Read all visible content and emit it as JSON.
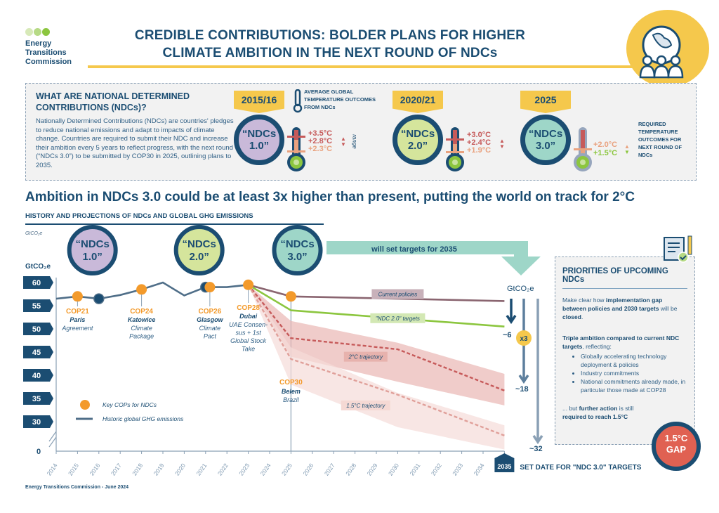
{
  "header": {
    "logo_text": [
      "Energy",
      "Transitions",
      "Commission"
    ],
    "title_lines": [
      "CREDIBLE CONTRIBUTIONS: BOLDER PLANS FOR HIGHER",
      "CLIMATE AMBITION IN THE NEXT ROUND OF NDCs"
    ],
    "badge_icon": "globe-people-icon"
  },
  "intro": {
    "heading": "WHAT ARE NATIONAL DETERMINED CONTRIBUTIONS (NDCs)?",
    "body": "Nationally Determined Contributions (NDCs) are countries' pledges to reduce national emissions and adapt to impacts of climate change. Countries are required to submit their NDC and increase their ambition every 5 years to reflect progress, with the next round (“NDCs 3.0”) to be submitted by COP30 in 2025, outlining plans to 2035.",
    "legend_label": "AVERAGE GLOBAL TEMPERATURE OUTCOMES FROM NDCs",
    "range_label": "range",
    "required_label": "REQUIRED TEMPERATURE OUTCOMES FOR NEXT ROUND OF NDCs",
    "rounds": [
      {
        "year": "2015/16",
        "name": "“NDCs 1.0”",
        "color": "#c9b9d9",
        "temps": [
          "+3.5°C",
          "+2.8°C",
          "+2.3°C"
        ]
      },
      {
        "year": "2020/21",
        "name": "“NDCs 2.0”",
        "color": "#d5e59c",
        "temps": [
          "+3.0°C",
          "+2.4°C",
          "+1.9°C"
        ]
      },
      {
        "year": "2025",
        "name": "“NDCs 3.0”",
        "color": "#9ed6c8",
        "temps": [
          "+2.0°C",
          "+1.5°C"
        ]
      }
    ]
  },
  "headline": "Ambition in NDCs 3.0 could be at least 3x higher than present, putting the world on track for 2°C",
  "subhead": "HISTORY AND PROJECTIONS OF NDCs AND GLOBAL GHG EMISSIONS",
  "chart_data": {
    "type": "line",
    "unit_label_top": "GtCO₂e",
    "ylabel": "GtCO₂e",
    "yticks": [
      60,
      55,
      50,
      45,
      40,
      35,
      30,
      0
    ],
    "ylim": [
      0,
      60
    ],
    "y_axis_broken": true,
    "xticks": [
      2014,
      2015,
      2016,
      2017,
      2018,
      2019,
      2020,
      2021,
      2022,
      2023,
      2024,
      2025,
      2026,
      2027,
      2028,
      2029,
      2030,
      2031,
      2032,
      2033,
      2034,
      2035
    ],
    "series": [
      {
        "name": "Historic global GHG emissions",
        "color": "#4f6e88",
        "style": "solid",
        "x": [
          2014,
          2015,
          2016,
          2017,
          2018,
          2019,
          2020,
          2021,
          2022,
          2023
        ],
        "y": [
          56.5,
          57,
          56.5,
          57.3,
          58.5,
          60,
          57.2,
          59,
          59,
          59.5
        ]
      },
      {
        "name": "Current policies",
        "color": "#8a6570",
        "style": "solid",
        "x": [
          2023,
          2025,
          2035
        ],
        "y": [
          59.5,
          57,
          56
        ]
      },
      {
        "name": "\"NDC 2.0\" targets",
        "color": "#8cc63f",
        "style": "solid",
        "x": [
          2023,
          2025,
          2035
        ],
        "y": [
          59.5,
          54,
          50.5
        ]
      },
      {
        "name": "2°C trajectory",
        "color": "#c65a5a",
        "style": "dashed",
        "x": [
          2023,
          2025,
          2030,
          2035
        ],
        "y": [
          59.5,
          48,
          45.6,
          36.7
        ],
        "band_upper": [
          59.5,
          51.7,
          47,
          40.3
        ],
        "band_lower": [
          59.5,
          44,
          38.6,
          33.5
        ],
        "band_color": "#e9b7b3"
      },
      {
        "name": "1.5°C trajectory",
        "color": "#e0a09a",
        "style": "dashed",
        "x": [
          2023,
          2025,
          2030,
          2035
        ],
        "y": [
          59.5,
          43.5,
          35.8,
          27
        ],
        "band_upper": [
          59.5,
          46,
          36.2,
          29.2
        ],
        "band_lower": [
          59.5,
          38,
          28.8,
          24
        ],
        "band_color": "#f5dcd8"
      }
    ],
    "ndc_markers": [
      {
        "label": "“NDCs 1.0”",
        "year": 2015.7,
        "color": "#c9b9d9"
      },
      {
        "label": "“NDCs 2.0”",
        "year": 2020.7,
        "color": "#d5e59c"
      },
      {
        "label": "“NDCs 3.0”",
        "year": 2025.3,
        "color": "#9ed6c8"
      }
    ],
    "historic_points": [
      {
        "year": 2016,
        "value": 56.5
      },
      {
        "year": 2021,
        "value": 59
      }
    ],
    "cops": [
      {
        "year": 2015,
        "value": 57,
        "cop": "COP21",
        "place": "Paris",
        "desc": "Agreement"
      },
      {
        "year": 2018,
        "value": 58.5,
        "cop": "COP24",
        "place": "Katowice",
        "desc": "Climate Package"
      },
      {
        "year": 2021.2,
        "value": 59,
        "cop": "COP26",
        "place": "Glasgow",
        "desc": "Climate Pact"
      },
      {
        "year": 2023,
        "value": 59.5,
        "cop": "COP28",
        "place": "Dubai",
        "desc": "UAE Consen-sus + 1st Global Stock Take"
      },
      {
        "year": 2025,
        "value": 57,
        "cop": "COP30",
        "place": "Belem",
        "desc": "Brazil"
      }
    ],
    "legend": {
      "cop_label": "Key COPs for NDCs",
      "hist_label": "Historic global GHG emissions",
      "placement": "bottom-left"
    },
    "banner": "will set targets for 2035",
    "gap_label_unit": "GtCO₂e",
    "gaps": [
      {
        "label": "~6"
      },
      {
        "label": "~18"
      },
      {
        "label": "~32"
      }
    ],
    "multiplier": "x3",
    "target_year": "2035",
    "target_label": "SET DATE FOR \"NDC 3.0\" TARGETS"
  },
  "priorities": {
    "heading": "PRIORITIES OF UPCOMING NDCs",
    "p1_a": "Make clear how ",
    "p1_b": "implementation gap between policies and 2030 targets",
    "p1_c": " will be ",
    "p1_d": "closed",
    "p2_a": "Triple ambition compared to current NDC targets",
    "p2_b": ", reflecting:",
    "bullets": [
      "Globally accelerating technology deployment & policies",
      "Industry commitments",
      "National commitments already made, in particular those made at COP28"
    ],
    "p3_a": "... but ",
    "p3_b": "further action",
    "p3_c": " is still ",
    "p3_d": "required to reach 1.5°C",
    "gap_badge": [
      "1.5°C",
      "GAP"
    ]
  },
  "footer": "Energy Transitions Commission - June 2024",
  "colors": {
    "navy": "#1b4d72",
    "yellow": "#f5c84c",
    "orange": "#f39a2b",
    "teal": "#9ed6c8",
    "red": "#e06152"
  }
}
